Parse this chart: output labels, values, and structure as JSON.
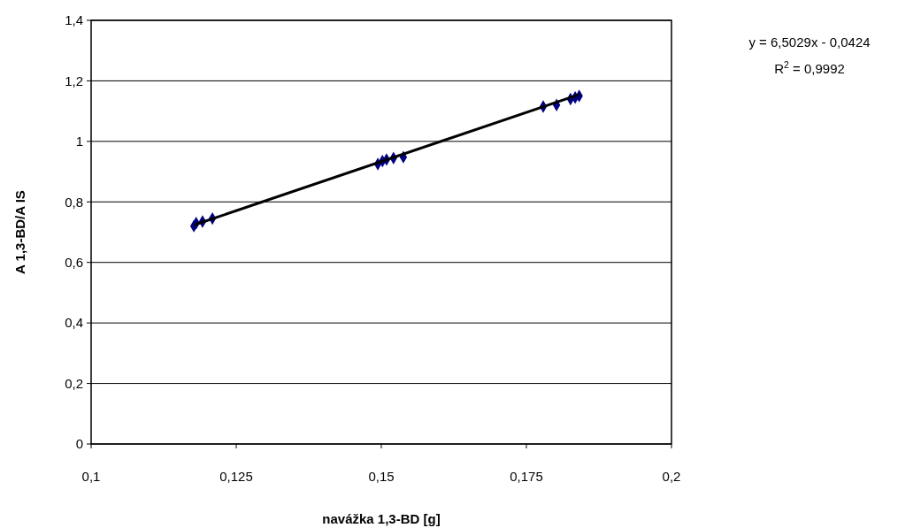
{
  "chart_data": {
    "type": "scatter",
    "xlabel": "navážka 1,3-BD [g]",
    "ylabel": "A 1,3-BD/A IS",
    "xlim": [
      0.1,
      0.2
    ],
    "xticks": [
      {
        "value": 0.1,
        "label": "0,1"
      },
      {
        "value": 0.125,
        "label": "0,125"
      },
      {
        "value": 0.15,
        "label": "0,15"
      },
      {
        "value": 0.175,
        "label": "0,175"
      },
      {
        "value": 0.2,
        "label": "0,2"
      }
    ],
    "ylim": [
      0,
      1.4
    ],
    "yticks": [
      0,
      {
        "value": 0.2,
        "label": "0,2"
      },
      {
        "value": 0.4,
        "label": "0,4"
      },
      {
        "value": 0.6,
        "label": "0,6"
      },
      {
        "value": 0.8,
        "label": "0,8"
      },
      1,
      {
        "value": 1.2,
        "label": "1,2"
      },
      {
        "value": 1.4,
        "label": "1,4"
      }
    ],
    "grid": "y",
    "legend": false,
    "series": [
      {
        "type": "scatter",
        "marker": "diamond",
        "color": "#000080",
        "x": [
          0.1177,
          0.1181,
          0.1192,
          0.1209,
          0.1494,
          0.1502,
          0.1509,
          0.1521,
          0.1538,
          0.1779,
          0.1802,
          0.1826,
          0.1834,
          0.1841
        ],
        "values": [
          0.72,
          0.73,
          0.735,
          0.745,
          0.925,
          0.935,
          0.94,
          0.945,
          0.948,
          1.115,
          1.12,
          1.14,
          1.145,
          1.15
        ]
      },
      {
        "type": "line",
        "marker": "none",
        "line_style": "solid",
        "color": "#000000",
        "x": [
          0.1178,
          0.1841
        ],
        "values": [
          0.724,
          1.155
        ]
      }
    ],
    "annotations": [
      "y = 6,5029x - 0,0424",
      "R$^{2}$ = 0,9992"
    ]
  }
}
